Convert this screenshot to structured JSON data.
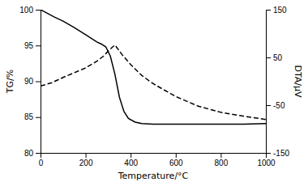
{
  "chart_data": {
    "type": "line",
    "xlabel": "Temperature/°C",
    "ylabel": "TG/%",
    "y2label": "DTA/μV",
    "xlim": [
      0,
      1000
    ],
    "xticks": [
      0,
      200,
      400,
      600,
      800,
      1000
    ],
    "ylim": [
      80,
      100
    ],
    "yticks": [
      80,
      85,
      90,
      95,
      100
    ],
    "y2lim": [
      -150,
      150
    ],
    "y2ticks": [
      -150,
      -50,
      50,
      150
    ],
    "series": [
      {
        "x": [
          0,
          30,
          60,
          100,
          150,
          200,
          250,
          270,
          290,
          310,
          330,
          350,
          370,
          390,
          420,
          450,
          500,
          600,
          700,
          800,
          900,
          1000
        ],
        "values": [
          100.0,
          99.5,
          99.0,
          98.4,
          97.5,
          96.5,
          95.5,
          95.2,
          94.8,
          93.5,
          91.0,
          87.8,
          85.8,
          84.8,
          84.3,
          84.1,
          84.0,
          84.0,
          84.0,
          84.0,
          84.0,
          84.1
        ],
        "color": "#000000",
        "line_style": "solid"
      },
      {
        "x": [
          0,
          50,
          100,
          150,
          200,
          250,
          280,
          300,
          320,
          330,
          340,
          360,
          400,
          450,
          500,
          600,
          700,
          800,
          900,
          1000
        ],
        "values": [
          -10,
          -3,
          8,
          18,
          28,
          42,
          53,
          63,
          72,
          76,
          70,
          57,
          35,
          12,
          -5,
          -32,
          -52,
          -65,
          -73,
          -80
        ],
        "color": "#000000",
        "line_style": "dashed",
        "axis": "y2"
      }
    ]
  }
}
